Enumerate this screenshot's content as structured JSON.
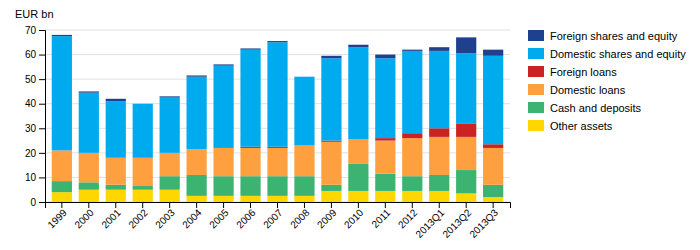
{
  "chart_data": {
    "type": "bar",
    "stacked": true,
    "ylabel": "EUR bn",
    "categories": [
      "1999",
      "2000",
      "2001",
      "2002",
      "2003",
      "2004",
      "2005",
      "2006",
      "2007",
      "2008",
      "2009",
      "2010",
      "2011",
      "2012",
      "2013Q1",
      "2013Q2",
      "2013Q3"
    ],
    "series": [
      {
        "name": "Other assets",
        "color": "#FFD700",
        "values": [
          4.0,
          5.0,
          5.0,
          5.0,
          5.0,
          2.5,
          2.5,
          2.5,
          2.5,
          2.5,
          4.5,
          4.5,
          4.5,
          4.5,
          4.5,
          3.5,
          2.0
        ]
      },
      {
        "name": "Cash and deposits",
        "color": "#3CB371",
        "values": [
          4.5,
          3.0,
          2.0,
          1.5,
          5.5,
          8.5,
          8.0,
          8.0,
          8.0,
          8.0,
          2.5,
          11.0,
          7.0,
          6.0,
          6.5,
          9.5,
          5.0
        ]
      },
      {
        "name": "Domestic loans",
        "color": "#FFA040",
        "values": [
          12.5,
          12.0,
          11.0,
          11.5,
          9.5,
          10.5,
          11.5,
          11.5,
          11.5,
          12.5,
          17.5,
          10.0,
          13.5,
          15.5,
          15.5,
          13.5,
          15.0
        ]
      },
      {
        "name": "Foreign loans",
        "color": "#CC2222",
        "values": [
          0.0,
          0.0,
          0.0,
          0.0,
          0.0,
          0.0,
          0.0,
          0.5,
          0.5,
          0.0,
          0.5,
          0.0,
          1.0,
          2.0,
          3.5,
          5.5,
          1.5
        ]
      },
      {
        "name": "Domestic shares and equity",
        "color": "#00AAEE",
        "values": [
          46.5,
          24.5,
          23.0,
          22.0,
          22.5,
          29.5,
          33.5,
          39.5,
          42.5,
          28.0,
          33.5,
          37.5,
          32.5,
          33.5,
          31.5,
          28.5,
          36.0
        ]
      },
      {
        "name": "Foreign shares and equity",
        "color": "#1F3F8F",
        "values": [
          0.5,
          0.5,
          1.0,
          0.0,
          0.5,
          0.5,
          0.5,
          0.5,
          0.5,
          0.0,
          1.0,
          1.0,
          1.5,
          0.5,
          1.5,
          6.5,
          2.5
        ]
      }
    ],
    "ylim": [
      0,
      70
    ],
    "yticks": [
      0,
      10,
      20,
      30,
      40,
      50,
      60,
      70
    ],
    "grid": true,
    "legend": "right"
  }
}
